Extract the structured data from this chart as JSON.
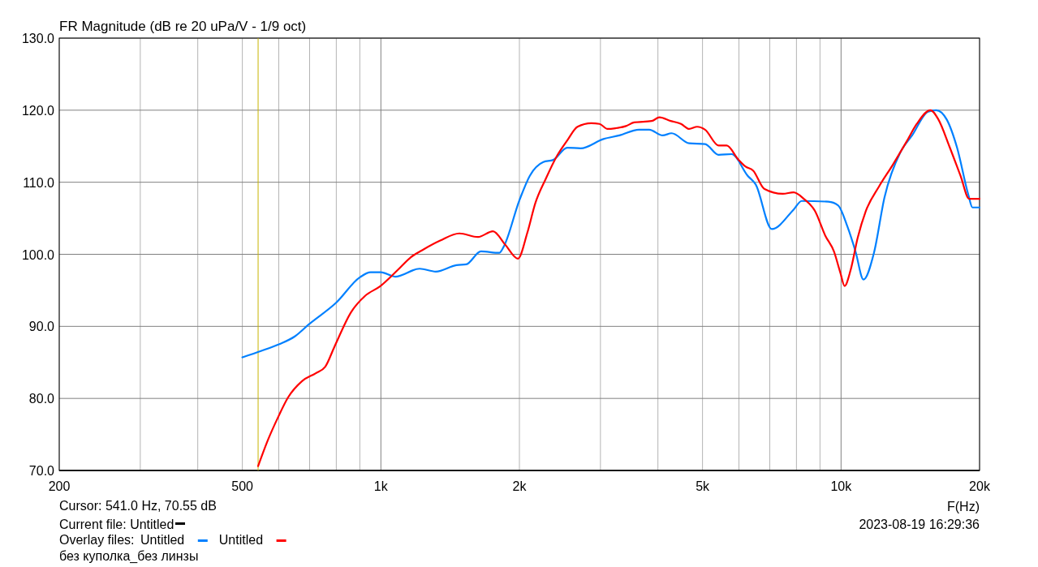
{
  "chart_data": {
    "type": "line",
    "title": "FR Magnitude (dB re 20 uPa/V - 1/9 oct)",
    "xlabel": "F(Hz)",
    "legend_title": "Overlay files:",
    "legend": "bottom left",
    "grid": true,
    "log": "x",
    "xlim": [
      200,
      20000
    ],
    "ylim": [
      70,
      130
    ],
    "xticks": [
      200,
      {
        "value": 300,
        "label": null
      },
      {
        "value": 400,
        "label": null
      },
      500,
      {
        "value": 600,
        "label": null
      },
      {
        "value": 700,
        "label": null
      },
      {
        "value": 800,
        "label": null
      },
      {
        "value": 900,
        "label": null
      },
      {
        "value": 1000,
        "label": "1k"
      },
      {
        "value": 2000,
        "label": "2k"
      },
      {
        "value": 3000,
        "label": null
      },
      {
        "value": 4000,
        "label": null
      },
      {
        "value": 5000,
        "label": "5k"
      },
      {
        "value": 6000,
        "label": null
      },
      {
        "value": 7000,
        "label": null
      },
      {
        "value": 8000,
        "label": null
      },
      {
        "value": 9000,
        "label": null
      },
      {
        "value": 10000,
        "label": "10k"
      },
      {
        "value": 20000,
        "label": "20k"
      }
    ],
    "yticks": [
      {
        "value": 70,
        "label": "70.0"
      },
      {
        "value": 80,
        "label": "80.0"
      },
      {
        "value": 90,
        "label": "90.0"
      },
      {
        "value": 100,
        "label": "100.0"
      },
      {
        "value": 110,
        "label": "110.0"
      },
      {
        "value": 120,
        "label": "120.0"
      },
      {
        "value": 130,
        "label": "130.0"
      }
    ],
    "ref_lines": [
      {
        "axis": "x",
        "value": 541,
        "color": "#c8b400"
      }
    ],
    "annotations": [
      "Cursor: 541.0 Hz, 70.55 dB",
      "Current file: Untitled",
      "без куполка_без линзы",
      "2023-08-19  16:29:36"
    ],
    "series": [
      {
        "name": "Untitled",
        "color": "#0080ff",
        "x": [
          500,
          550,
          600,
          650,
          698,
          800,
          900,
          950,
          1000,
          1074,
          1214,
          1316,
          1460,
          1532,
          1650,
          1808,
          1847,
          2000,
          2107,
          2254,
          2370,
          2541,
          2717,
          3046,
          3300,
          3638,
          3828,
          4094,
          4283,
          4678,
          5064,
          5419,
          5785,
          6268,
          6524,
          7071,
          7886,
          8212,
          9383,
          9850,
          10330,
          10750,
          11190,
          11790,
          12430,
          13470,
          14270,
          15460,
          16100,
          16970,
          17870,
          18900,
          19300,
          20000
        ],
        "values": [
          85.7,
          86.6,
          87.5,
          88.6,
          90.3,
          93.3,
          96.8,
          97.5,
          97.5,
          96.9,
          98.0,
          97.6,
          98.5,
          98.6,
          100.4,
          100.2,
          101.0,
          107.5,
          110.9,
          112.8,
          113.1,
          114.8,
          114.7,
          116.0,
          116.5,
          117.3,
          117.3,
          116.5,
          116.8,
          115.4,
          115.3,
          113.8,
          113.9,
          110.9,
          109.7,
          103.5,
          106.2,
          107.4,
          107.3,
          106.8,
          103.8,
          100.4,
          96.5,
          100.2,
          107.9,
          114.2,
          116.5,
          119.8,
          120.0,
          118.7,
          114.8,
          108.3,
          106.5,
          106.5
        ]
      },
      {
        "name": "Untitled",
        "color": "#ff0000",
        "x": [
          541,
          568,
          599,
          628,
          674,
          722,
          757,
          793,
          862,
          923,
          998,
          1087,
          1162,
          1240,
          1346,
          1481,
          1626,
          1752,
          1865,
          1985,
          2081,
          2166,
          2283,
          2416,
          2541,
          2675,
          2866,
          2985,
          3108,
          3235,
          3410,
          3550,
          3876,
          4030,
          4265,
          4490,
          4678,
          4867,
          5064,
          5419,
          5644,
          5971,
          6194,
          6445,
          6806,
          7471,
          7886,
          8300,
          8780,
          9240,
          9650,
          9970,
          10180,
          10490,
          10870,
          11320,
          12090,
          12950,
          13870,
          14610,
          15640,
          16280,
          17190,
          18180,
          18990,
          20000
        ],
        "values": [
          70.6,
          74.2,
          77.5,
          80.1,
          82.4,
          83.5,
          84.4,
          87.2,
          92.0,
          94.2,
          95.6,
          97.8,
          99.6,
          100.7,
          101.9,
          102.9,
          102.4,
          103.2,
          101.3,
          99.4,
          103.0,
          107.1,
          110.5,
          113.7,
          115.8,
          117.7,
          118.2,
          118.1,
          117.4,
          117.5,
          117.8,
          118.3,
          118.5,
          119.0,
          118.5,
          118.1,
          117.4,
          117.7,
          117.3,
          115.1,
          115.1,
          113.2,
          112.2,
          111.6,
          109.1,
          108.4,
          108.6,
          107.7,
          106.0,
          102.6,
          100.4,
          97.4,
          95.6,
          97.8,
          102.3,
          106.0,
          109.4,
          112.4,
          115.6,
          118.1,
          120.0,
          118.7,
          115.0,
          110.9,
          107.7,
          107.7
        ]
      }
    ]
  }
}
